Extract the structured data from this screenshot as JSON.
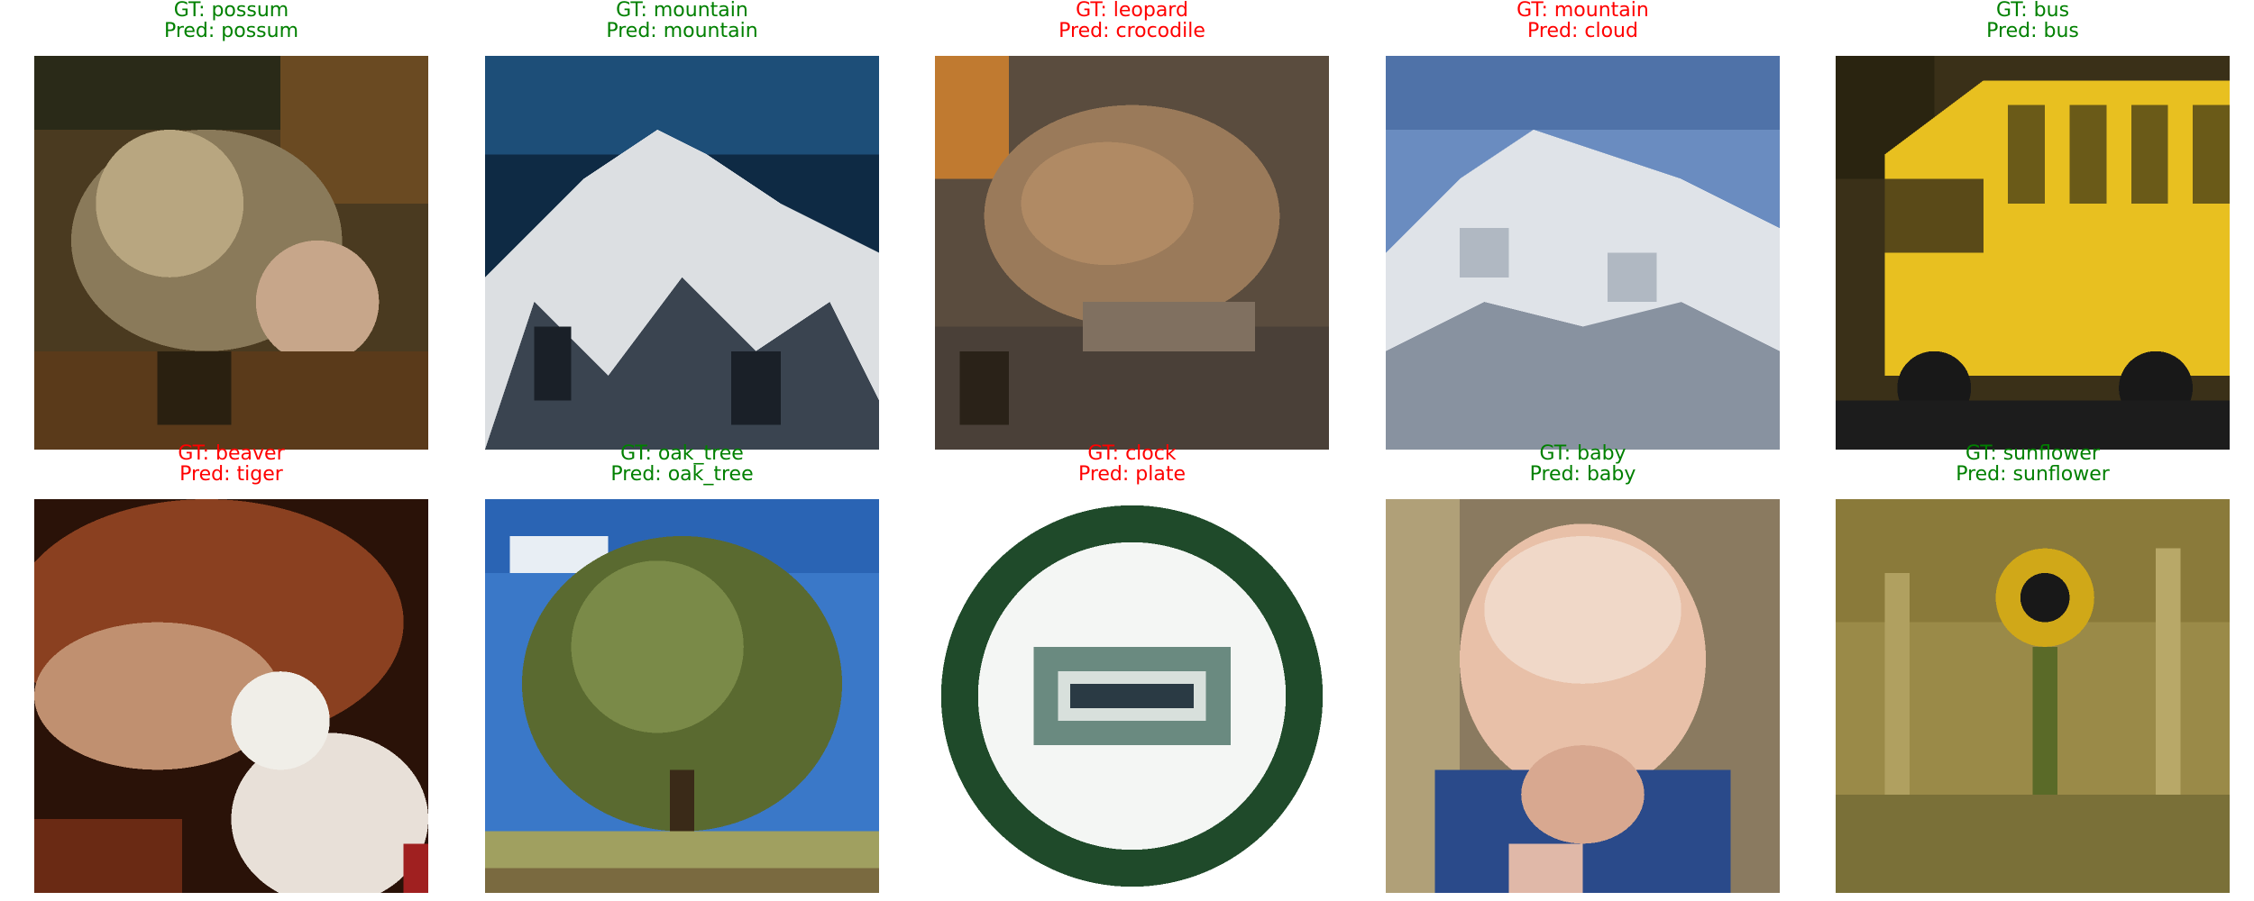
{
  "colors": {
    "correct": "#008000",
    "incorrect": "#ff0000"
  },
  "samples": [
    {
      "gt": "GT: possum",
      "pred": "Pred: possum",
      "correct": true,
      "scene": "possum"
    },
    {
      "gt": "GT: mountain",
      "pred": "Pred: mountain",
      "correct": true,
      "scene": "mountain-dark"
    },
    {
      "gt": "GT: leopard",
      "pred": "Pred: crocodile",
      "correct": false,
      "scene": "leopard"
    },
    {
      "gt": "GT: mountain",
      "pred": "Pred: cloud",
      "correct": false,
      "scene": "mountain-light"
    },
    {
      "gt": "GT: bus",
      "pred": "Pred: bus",
      "correct": true,
      "scene": "bus"
    },
    {
      "gt": "GT: beaver",
      "pred": "Pred: tiger",
      "correct": false,
      "scene": "beaver"
    },
    {
      "gt": "GT: oak_tree",
      "pred": "Pred: oak_tree",
      "correct": true,
      "scene": "oak-tree"
    },
    {
      "gt": "GT: clock",
      "pred": "Pred: plate",
      "correct": false,
      "scene": "clock"
    },
    {
      "gt": "GT: baby",
      "pred": "Pred: baby",
      "correct": true,
      "scene": "baby"
    },
    {
      "gt": "GT: sunflower",
      "pred": "Pred: sunflower",
      "correct": true,
      "scene": "sunflower"
    }
  ]
}
